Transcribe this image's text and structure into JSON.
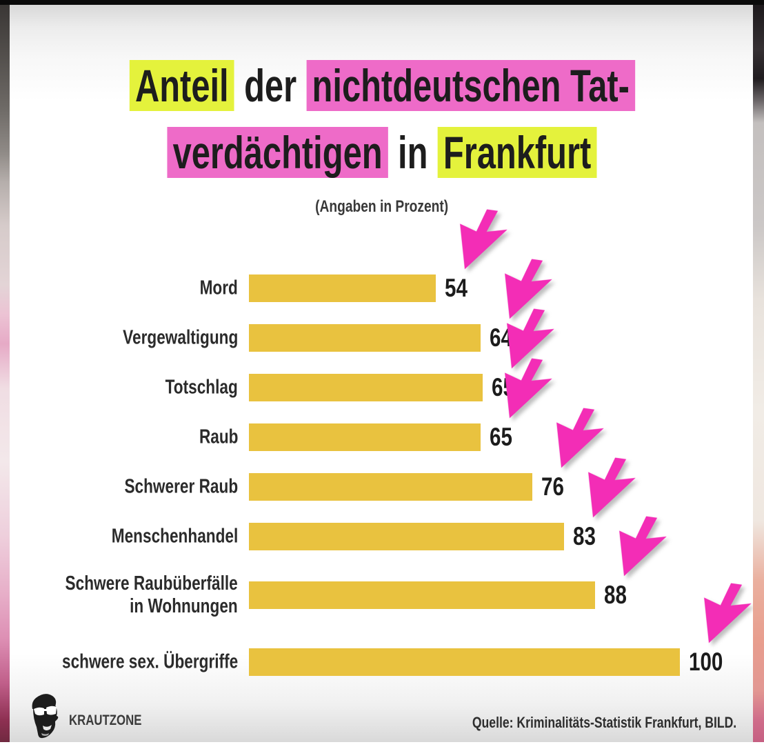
{
  "page": {
    "subtitle": "(Angaben in Prozent)",
    "brand": "KRAUTZONE",
    "source": "Quelle: Kriminalitäts-Statistik Frankfurt, BILD."
  },
  "colors": {
    "highlight_yellow": "#e4f23c",
    "highlight_pink": "#ee6bc8",
    "bar_yellow": "#e9c23f",
    "arrow_pink": "#f32db6",
    "text_dark": "#1d1d1d"
  },
  "title_segments": {
    "line1": [
      {
        "text": "Anteil",
        "highlight": "yellow"
      },
      {
        "text": " der ",
        "highlight": "none"
      },
      {
        "text": "nichtdeutschen Tat-",
        "highlight": "pink"
      }
    ],
    "line2": [
      {
        "text": "verdächtigen",
        "highlight": "pink"
      },
      {
        "text": " in ",
        "highlight": "none"
      },
      {
        "text": "Frankfurt",
        "highlight": "yellow"
      }
    ]
  },
  "chart_data": {
    "type": "bar",
    "orientation": "horizontal",
    "title": "Anteil der nichtdeutschen Tatverdächtigen in Frankfurt",
    "subtitle": "(Angaben in Prozent)",
    "unit": "percent",
    "categories": [
      "Mord",
      "Vergewaltigung",
      "Totschlag",
      "Raub",
      "Schwerer Raub",
      "Menschenhandel",
      "Schwere Raubüberfälle in Wohnungen",
      "schwere sex. Übergriffe"
    ],
    "values": [
      54,
      64,
      65,
      65,
      76,
      83,
      88,
      100
    ],
    "xlim": [
      0,
      100
    ],
    "grid": false,
    "legend": false,
    "value_labels": "right of bar",
    "annotation": "pink cursor arrows pointing down-left at each bar end",
    "source": "Quelle: Kriminalitäts-Statistik Frankfurt, BILD.",
    "rows": [
      {
        "label": "Mord",
        "value": 54,
        "bar_pct": 43.4
      },
      {
        "label": "Vergewaltigung",
        "value": 64,
        "bar_pct": 53.8
      },
      {
        "label": "Totschlag",
        "value": 65,
        "bar_pct": 54.2
      },
      {
        "label": "Raub",
        "value": 65,
        "bar_pct": 53.8
      },
      {
        "label": "Schwerer Raub",
        "value": 76,
        "bar_pct": 65.8
      },
      {
        "label": "Menschenhandel",
        "value": 83,
        "bar_pct": 73.1
      },
      {
        "label": "Schwere Raubüberfälle",
        "label2": "in Wohnungen",
        "value": 88,
        "bar_pct": 80.3
      },
      {
        "label": "schwere sex. Übergriffe",
        "value": 100,
        "bar_pct": 100
      }
    ]
  }
}
